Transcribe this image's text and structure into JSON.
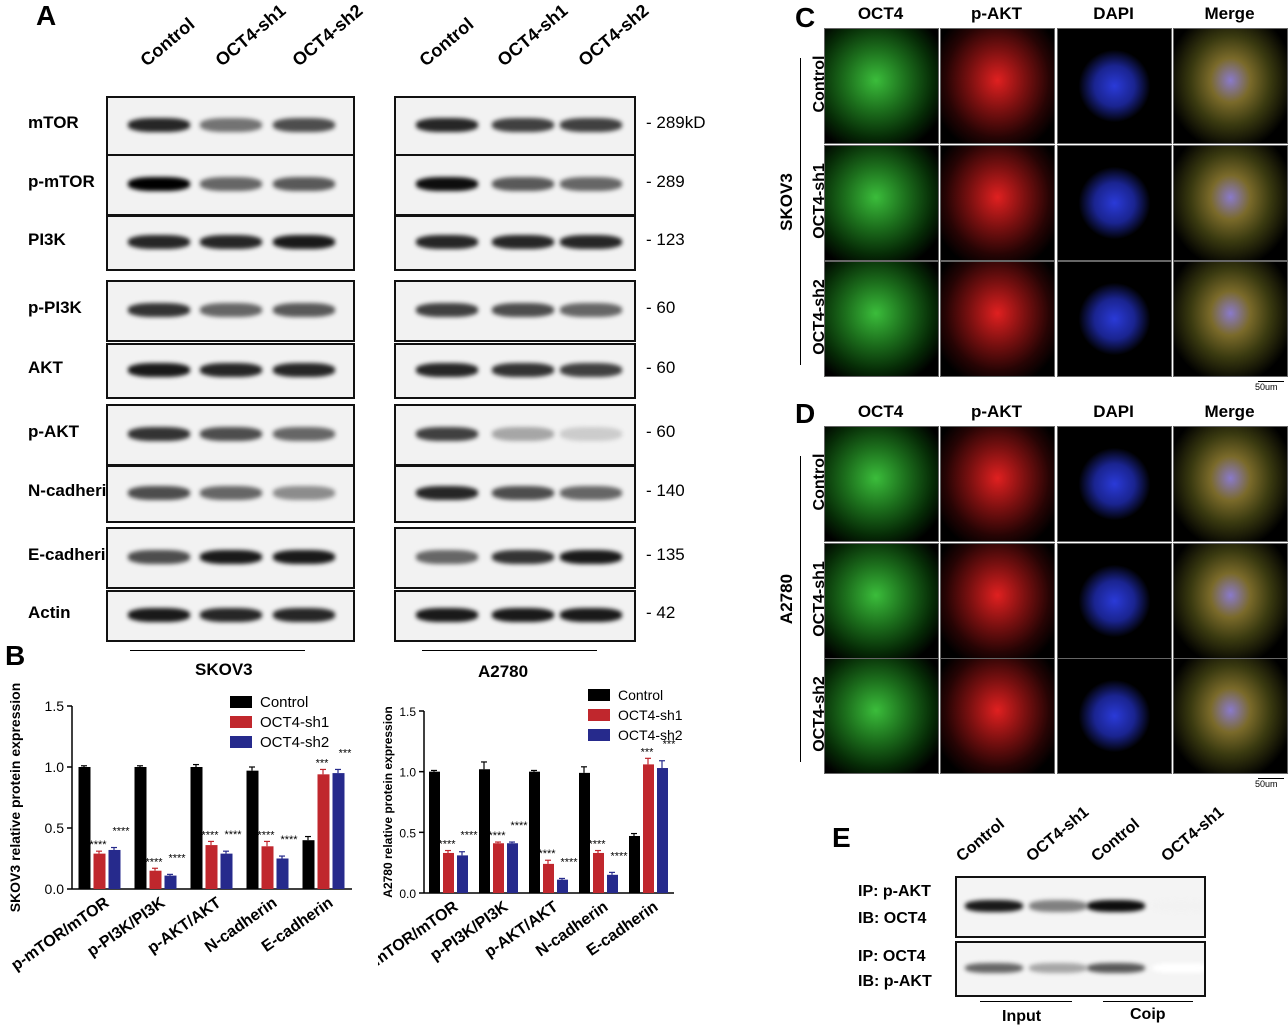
{
  "panels": {
    "A": "A",
    "B": "B",
    "C": "C",
    "D": "D",
    "E": "E"
  },
  "blots": {
    "lanes": [
      "Control",
      "OCT4-sh1",
      "OCT4-sh2"
    ],
    "proteins": [
      "mTOR",
      "p-mTOR",
      "PI3K",
      "p-PI3K",
      "AKT",
      "p-AKT",
      "N-cadherin",
      "E-cadherin",
      "Actin"
    ],
    "sizes": [
      "- 289kD",
      "- 289",
      "- 123",
      "- 60",
      "- 60",
      "- 60",
      "- 140",
      "- 135",
      "- 42"
    ],
    "left_cell": "SKOV3",
    "right_cell": "A2780",
    "left_intensity": [
      [
        0.85,
        0.55,
        0.7
      ],
      [
        1.0,
        0.6,
        0.65
      ],
      [
        0.85,
        0.85,
        0.9
      ],
      [
        0.8,
        0.6,
        0.65
      ],
      [
        0.9,
        0.85,
        0.85
      ],
      [
        0.8,
        0.7,
        0.6
      ],
      [
        0.7,
        0.6,
        0.45
      ],
      [
        0.7,
        0.9,
        0.9
      ],
      [
        0.9,
        0.85,
        0.85
      ]
    ],
    "right_intensity": [
      [
        0.85,
        0.75,
        0.75
      ],
      [
        0.95,
        0.65,
        0.6
      ],
      [
        0.85,
        0.85,
        0.85
      ],
      [
        0.75,
        0.7,
        0.6
      ],
      [
        0.85,
        0.8,
        0.75
      ],
      [
        0.75,
        0.35,
        0.2
      ],
      [
        0.85,
        0.7,
        0.6
      ],
      [
        0.6,
        0.8,
        0.9
      ],
      [
        0.9,
        0.9,
        0.9
      ]
    ]
  },
  "chart_data": [
    {
      "type": "bar",
      "ylabel": "SKOV3 relative protein expression",
      "categories": [
        "p-mTOR/mTOR",
        "p-PI3K/PI3K",
        "p-AKT/AKT",
        "N-cadherin",
        "E-cadherin"
      ],
      "series": [
        {
          "name": "Control",
          "values": [
            1.0,
            1.0,
            1.0,
            0.97,
            0.4
          ],
          "errors": [
            0.01,
            0.01,
            0.02,
            0.03,
            0.03
          ]
        },
        {
          "name": "OCT4-sh1",
          "values": [
            0.29,
            0.15,
            0.36,
            0.35,
            0.94
          ],
          "errors": [
            0.02,
            0.02,
            0.03,
            0.04,
            0.04
          ]
        },
        {
          "name": "OCT4-sh2",
          "values": [
            0.32,
            0.11,
            0.29,
            0.25,
            0.95
          ],
          "errors": [
            0.02,
            0.01,
            0.02,
            0.02,
            0.03
          ]
        }
      ],
      "significance": [
        [
          "",
          "****",
          "****"
        ],
        [
          "",
          "****",
          "****"
        ],
        [
          "",
          "****",
          "****"
        ],
        [
          "",
          "****",
          "****"
        ],
        [
          "",
          "***",
          "***"
        ]
      ],
      "ylim": [
        0,
        1.5
      ],
      "yticks": [
        "0.0",
        "0.5",
        "1.0",
        "1.5"
      ],
      "legend": "top-right",
      "colors": [
        "#000000",
        "#c0272d",
        "#262a8c"
      ]
    },
    {
      "type": "bar",
      "ylabel": "A2780 relative protein expression",
      "categories": [
        "p-mTOR/mTOR",
        "p-PI3K/PI3K",
        "p-AKT/AKT",
        "N-cadherin",
        "E-cadherin"
      ],
      "series": [
        {
          "name": "Control",
          "values": [
            1.0,
            1.02,
            1.0,
            0.99,
            0.47
          ],
          "errors": [
            0.01,
            0.06,
            0.01,
            0.05,
            0.02
          ]
        },
        {
          "name": "OCT4-sh1",
          "values": [
            0.33,
            0.41,
            0.24,
            0.33,
            1.06
          ],
          "errors": [
            0.02,
            0.01,
            0.03,
            0.02,
            0.05
          ]
        },
        {
          "name": "OCT4-sh2",
          "values": [
            0.31,
            0.41,
            0.11,
            0.15,
            1.03
          ],
          "errors": [
            0.03,
            0.01,
            0.01,
            0.02,
            0.06
          ]
        }
      ],
      "significance": [
        [
          "",
          "****",
          "****"
        ],
        [
          "",
          "****",
          "****"
        ],
        [
          "",
          "****",
          "****"
        ],
        [
          "",
          "****",
          "****"
        ],
        [
          "",
          "***",
          "***"
        ]
      ],
      "ylim": [
        0,
        1.5
      ],
      "yticks": [
        "0.0",
        "0.5",
        "1.0",
        "1.5"
      ],
      "legend": "top-right",
      "colors": [
        "#000000",
        "#c0272d",
        "#262a8c"
      ]
    }
  ],
  "if_panels": {
    "columns": [
      "OCT4",
      "p-AKT",
      "DAPI",
      "Merge"
    ],
    "rows": [
      "Control",
      "OCT4-sh1",
      "OCT4-sh2"
    ],
    "cellC": "SKOV3",
    "cellD": "A2780",
    "scale": "50um"
  },
  "ip": {
    "lanes": [
      "Control",
      "OCT4-sh1",
      "Control",
      "OCT4-sh1"
    ],
    "top_ip": "IP: p-AKT",
    "top_ib": "IB: OCT4",
    "bot_ip": "IP: OCT4",
    "bot_ib": "IB: p-AKT",
    "input": "Input",
    "coip": "Coip",
    "top_intensity": [
      0.9,
      0.5,
      0.95,
      0.05
    ],
    "bot_intensity": [
      0.6,
      0.35,
      0.65,
      0.0
    ]
  }
}
